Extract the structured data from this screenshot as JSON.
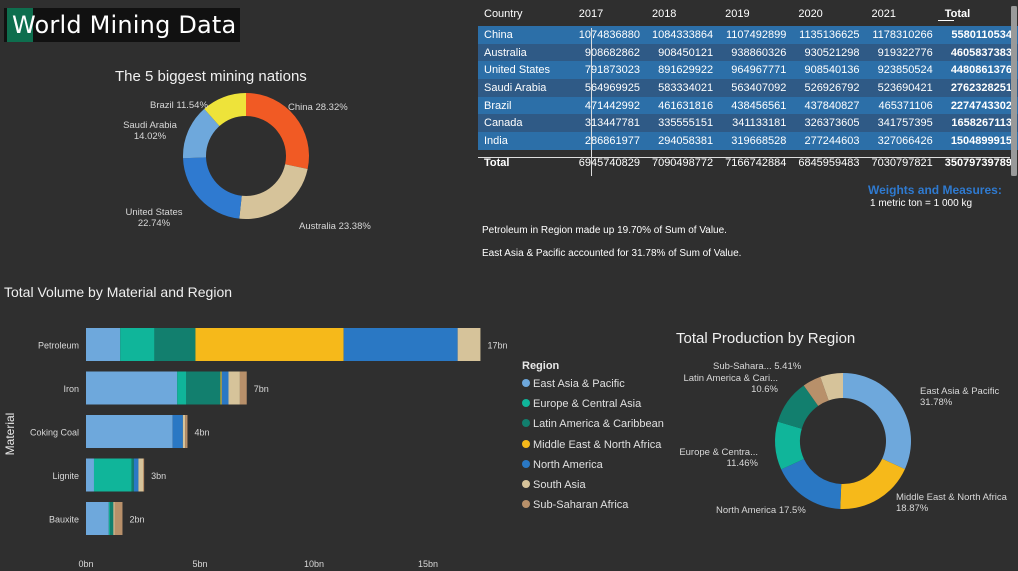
{
  "header": {
    "title": "World Mining Data"
  },
  "pie1": {
    "title": "The 5 biggest mining nations",
    "slices": [
      {
        "label": "China 28.32%",
        "value": 28.32,
        "color": "#f15a24"
      },
      {
        "label": "Australia 23.38%",
        "value": 23.38,
        "color": "#d6c39a"
      },
      {
        "label": "United States 22.74%",
        "value": 22.74,
        "color": "#2f7ad0"
      },
      {
        "label": "Saudi Arabia 14.02%",
        "value": 14.02,
        "color": "#6ea8dc"
      },
      {
        "label": "Brazil 11.54%",
        "value": 11.54,
        "color": "#eee33a"
      }
    ],
    "labels": {
      "china": "China 28.32%",
      "australia": "Australia 23.38%",
      "us1": "United States",
      "us2": "22.74%",
      "sa1": "Saudi Arabia",
      "sa2": "14.02%",
      "brazil": "Brazil 11.54%"
    }
  },
  "table": {
    "headers": [
      "Country",
      "2017",
      "2018",
      "2019",
      "2020",
      "2021",
      "Total"
    ],
    "rows": [
      [
        "China",
        "1074836880",
        "1084333864",
        "1107492899",
        "1135136625",
        "1178310266",
        "5580110534"
      ],
      [
        "Australia",
        "908682862",
        "908450121",
        "938860326",
        "930521298",
        "919322776",
        "4605837383"
      ],
      [
        "United States",
        "791873023",
        "891629922",
        "964967771",
        "908540136",
        "923850524",
        "4480861376"
      ],
      [
        "Saudi Arabia",
        "564969925",
        "583334021",
        "563407092",
        "526926792",
        "523690421",
        "2762328251"
      ],
      [
        "Brazil",
        "471442992",
        "461631816",
        "438456561",
        "437840827",
        "465371106",
        "2274743302"
      ],
      [
        "Canada",
        "313447781",
        "335555151",
        "341133181",
        "326373605",
        "341757395",
        "1658267113"
      ],
      [
        "India",
        "286861977",
        "294058381",
        "319668528",
        "277244603",
        "327066426",
        "1504899915"
      ]
    ],
    "total": [
      "Total",
      "6945740829",
      "7090498772",
      "7166742884",
      "6845959483",
      "7030797821",
      "35079739789"
    ]
  },
  "weights": {
    "title": "Weights and Measures:",
    "text": "1 metric ton = 1 000 kg"
  },
  "insights": {
    "line1": "Petroleum in Region  made up 19.70% of Sum of Value.",
    "line2": "East Asia & Pacific accounted for 31.78% of Sum of Value."
  },
  "bar_title": "Total Volume by Material and Region",
  "donut_title": "Total Production by Region",
  "legend": {
    "title": "Region",
    "items": [
      {
        "label": "East Asia & Pacific",
        "color": "#6ea8dc"
      },
      {
        "label": "Europe & Central Asia",
        "color": "#10b59a"
      },
      {
        "label": "Latin America & Caribbean",
        "color": "#127f6e"
      },
      {
        "label": "Middle East & North Africa",
        "color": "#f6b91a"
      },
      {
        "label": "North America",
        "color": "#2a78c4"
      },
      {
        "label": "South Asia",
        "color": "#d6c39a"
      },
      {
        "label": "Sub-Saharan Africa",
        "color": "#b8906a"
      }
    ]
  },
  "chart_data": [
    {
      "type": "bar",
      "title": "Total Volume by Material and Region",
      "ylabel": "Material",
      "categories": [
        "Petroleum",
        "Iron",
        "Coking Coal",
        "Lignite",
        "Bauxite"
      ],
      "totals_labels": [
        "17bn",
        "7bn",
        "4bn",
        "3bn",
        "2bn"
      ],
      "xticks": [
        "0bn",
        "5bn",
        "10bn",
        "15bn"
      ],
      "xlim": [
        0,
        17.5
      ],
      "series": [
        {
          "name": "East Asia & Pacific",
          "values": [
            1.5,
            4.0,
            3.8,
            0.35,
            1.0
          ]
        },
        {
          "name": "Europe & Central Asia",
          "values": [
            1.5,
            0.4,
            0.0,
            1.65,
            0.05
          ]
        },
        {
          "name": "Latin America & Caribbean",
          "values": [
            1.8,
            1.5,
            0.0,
            0.1,
            0.15
          ]
        },
        {
          "name": "Middle East & North Africa",
          "values": [
            6.5,
            0.05,
            0.0,
            0.0,
            0.0
          ]
        },
        {
          "name": "North America",
          "values": [
            5.0,
            0.3,
            0.45,
            0.2,
            0.0
          ]
        },
        {
          "name": "South Asia",
          "values": [
            1.0,
            0.5,
            0.1,
            0.2,
            0.05
          ]
        },
        {
          "name": "Sub-Saharan Africa",
          "values": [
            0.0,
            0.3,
            0.1,
            0.05,
            0.35
          ]
        }
      ]
    },
    {
      "type": "pie",
      "title": "Total Production by Region",
      "slices": [
        {
          "label": "East Asia & Pacific",
          "value": 31.78,
          "color": "#6ea8dc"
        },
        {
          "label": "Middle East & North Africa",
          "value": 18.87,
          "color": "#f6b91a"
        },
        {
          "label": "North America",
          "value": 17.5,
          "color": "#2a78c4"
        },
        {
          "label": "Europe & Central Asia",
          "value": 11.46,
          "color": "#10b59a"
        },
        {
          "label": "Latin America & Caribbean",
          "value": 10.6,
          "color": "#127f6e"
        },
        {
          "label": "South Asia",
          "value": 4.38,
          "color": "#b8906a"
        },
        {
          "label": "Sub-Saharan Africa",
          "value": 5.41,
          "color": "#d6c39a"
        }
      ],
      "labels": {
        "eap1": "East Asia & Pacific",
        "eap2": "31.78%",
        "mena1": "Middle East & North Africa",
        "mena2": "18.87%",
        "na": "North America 17.5%",
        "eca1": "Europe & Centra...",
        "eca2": "11.46%",
        "lac1": "Latin America & Cari...",
        "lac2": "10.6%",
        "ssa": "Sub-Sahara... 5.41%"
      }
    }
  ]
}
